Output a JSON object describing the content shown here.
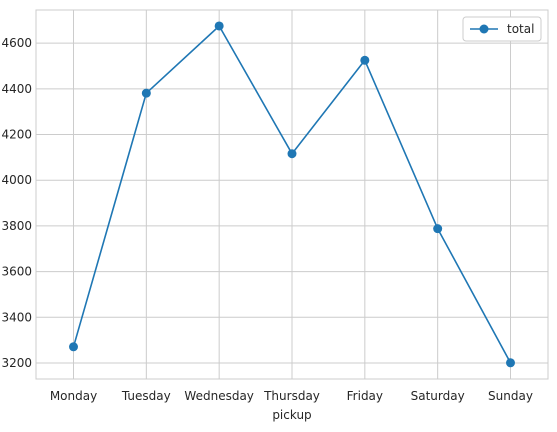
{
  "chart_data": {
    "type": "line",
    "categories": [
      "Monday",
      "Tuesday",
      "Wednesday",
      "Thursday",
      "Friday",
      "Saturday",
      "Sunday"
    ],
    "series": [
      {
        "name": "total",
        "values": [
          3271,
          4381,
          4675,
          4116,
          4525,
          3788,
          3201
        ],
        "color": "#1f77b4",
        "marker": "circle"
      }
    ],
    "xlabel": "pickup",
    "ylabel": "",
    "ylim": [
      3130,
      4745
    ],
    "yticks": [
      3200,
      3400,
      3600,
      3800,
      4000,
      4200,
      4400,
      4600
    ],
    "grid": true,
    "legend": "top-right"
  }
}
